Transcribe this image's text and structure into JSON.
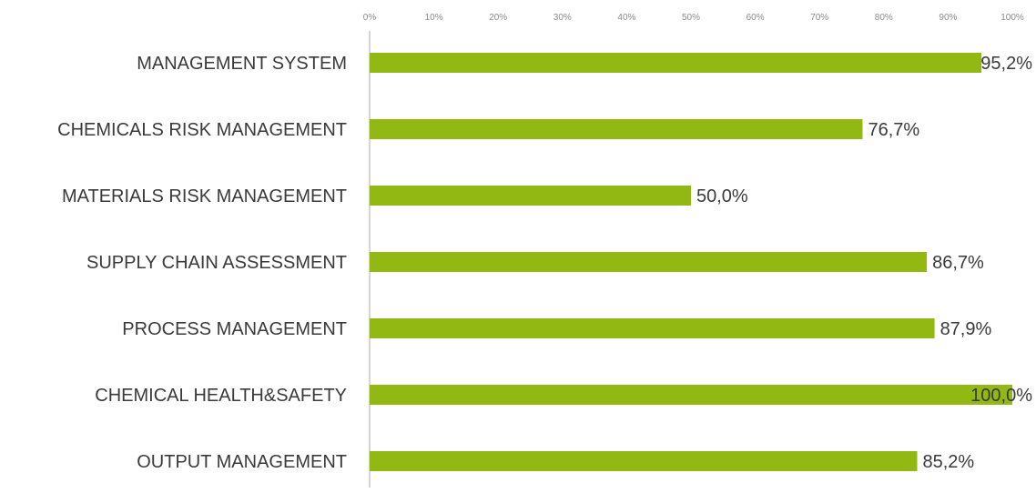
{
  "chart_data": {
    "type": "bar",
    "orientation": "horizontal",
    "title": "",
    "xlabel": "",
    "ylabel": "",
    "xlim": [
      0,
      100
    ],
    "ticks": [
      0,
      10,
      20,
      30,
      40,
      50,
      60,
      70,
      80,
      90,
      100
    ],
    "tick_labels": [
      "0%",
      "10%",
      "20%",
      "30%",
      "40%",
      "50%",
      "60%",
      "70%",
      "80%",
      "90%",
      "100%"
    ],
    "categories": [
      "MANAGEMENT SYSTEM",
      "CHEMICALS RISK MANAGEMENT",
      "MATERIALS RISK MANAGEMENT",
      "SUPPLY CHAIN ASSESSMENT",
      "PROCESS MANAGEMENT",
      "CHEMICAL HEALTH&SAFETY",
      "OUTPUT MANAGEMENT"
    ],
    "values": [
      95.2,
      76.7,
      50.0,
      86.7,
      87.9,
      100.0,
      85.2
    ],
    "value_labels": [
      "95,2%",
      "76,7%",
      "50,0%",
      "86,7%",
      "87,9%",
      "100,0%",
      "85,2%"
    ],
    "grid": false,
    "legend": "none",
    "bar_color": "#92b814",
    "axis_color": "#c8c8c8"
  }
}
